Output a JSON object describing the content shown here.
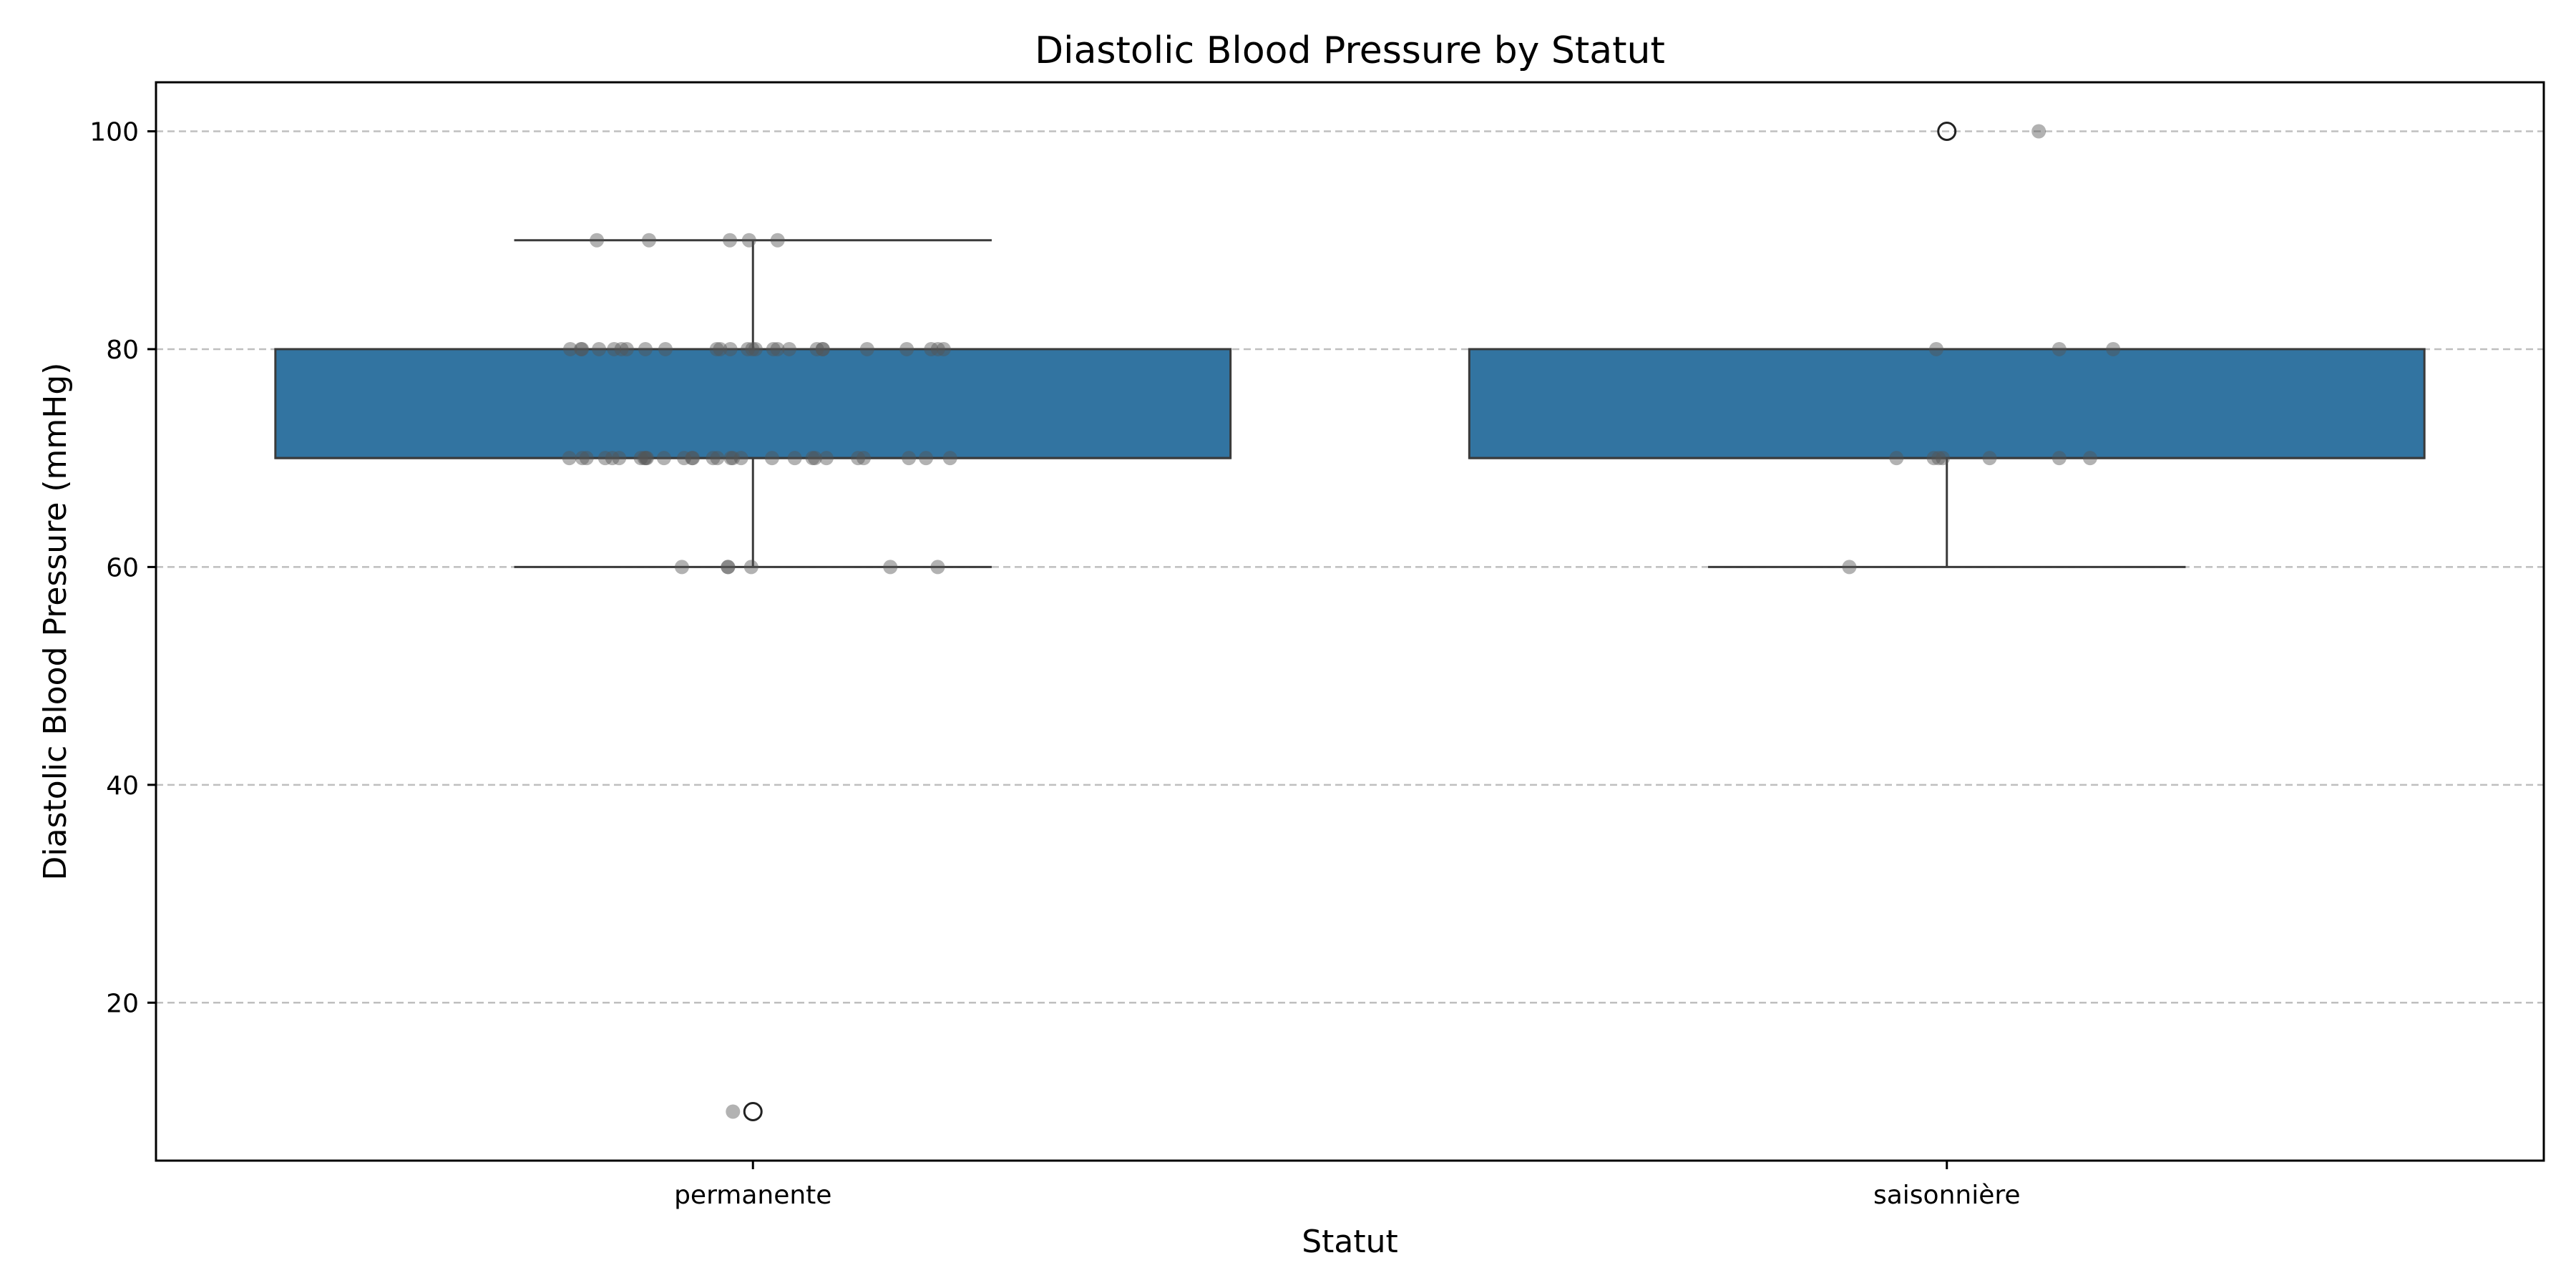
{
  "chart_data": {
    "type": "box",
    "title": "Diastolic Blood Pressure by Statut",
    "xlabel": "Statut",
    "ylabel": "Diastolic Blood Pressure (mmHg)",
    "ylim": [
      5.5,
      104.5
    ],
    "yticks": [
      20,
      40,
      60,
      80,
      100
    ],
    "grid": "y-dashed",
    "colors": {
      "box": "#3274a1",
      "edge": "#3a3a3a",
      "points": "#555555",
      "grid": "#bfbfbf"
    },
    "categories": [
      "permanente",
      "saisonnière"
    ],
    "boxes": [
      {
        "category": "permanente",
        "whisker_low": 60,
        "q1": 70,
        "median": 70,
        "q3": 80,
        "whisker_high": 90,
        "outliers": [
          10
        ]
      },
      {
        "category": "saisonnière",
        "whisker_low": 60,
        "q1": 70,
        "median": 70,
        "q3": 80,
        "whisker_high": 80,
        "outliers": [
          100
        ]
      }
    ],
    "points": [
      {
        "category": "permanente",
        "values": [
          90,
          90,
          90,
          90,
          90,
          80,
          80,
          80,
          80,
          80,
          80,
          80,
          80,
          80,
          80,
          80,
          80,
          80,
          80,
          80,
          80,
          80,
          80,
          80,
          80,
          80,
          80,
          80,
          80,
          80,
          80,
          70,
          70,
          70,
          70,
          70,
          70,
          70,
          70,
          70,
          70,
          70,
          70,
          70,
          70,
          70,
          70,
          70,
          70,
          70,
          70,
          70,
          70,
          70,
          70,
          70,
          70,
          70,
          70,
          70,
          60,
          60,
          60,
          60,
          60,
          60,
          10
        ]
      },
      {
        "category": "saisonnière",
        "values": [
          100,
          80,
          80,
          80,
          70,
          70,
          70,
          70,
          70,
          70,
          70,
          60
        ]
      }
    ]
  }
}
